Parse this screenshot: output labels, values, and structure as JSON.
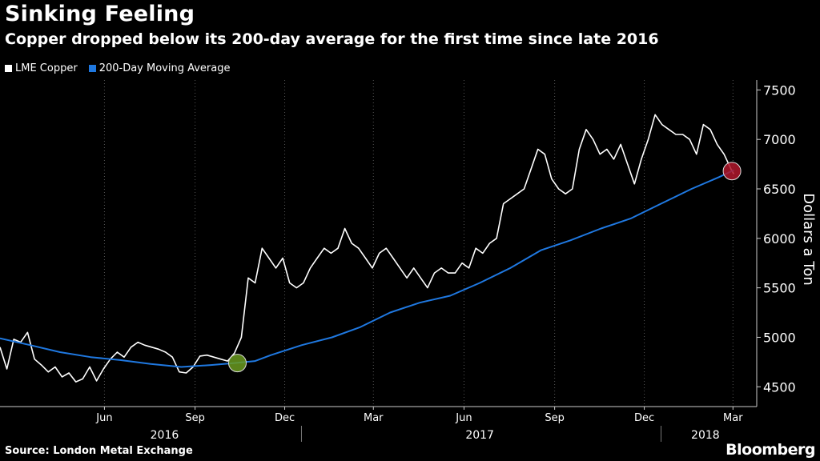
{
  "title": "Sinking Feeling",
  "subtitle": "Copper dropped below its 200-day average for the first time since late 2016",
  "source": "Source: London Metal Exchange",
  "brand": "Bloomberg",
  "colors": {
    "background": "#000000",
    "copper": "#ffffff",
    "ma": "#1f78e0",
    "marker_cross_up": "#6a9a1f",
    "marker_cross_down": "#b0182c"
  },
  "chart_data": {
    "type": "line",
    "title": "Sinking Feeling",
    "subtitle": "Copper dropped below its 200-day average for the first time since late 2016",
    "ylabel": "Dollars a Ton",
    "ylim": [
      4300,
      7600
    ],
    "yticks": [
      4500,
      5000,
      5500,
      6000,
      6500,
      7000,
      7500
    ],
    "x_month_labels": [
      "Jun",
      "Sep",
      "Dec",
      "Mar",
      "Jun",
      "Sep",
      "Dec",
      "Mar"
    ],
    "x_year_labels": [
      "2016",
      "2017",
      "2018"
    ],
    "legend": "top-left",
    "grid": "vertical dotted",
    "series": [
      {
        "name": "LME Copper",
        "color": "#ffffff",
        "points": [
          [
            "2016-03-01",
            4900
          ],
          [
            "2016-03-08",
            4680
          ],
          [
            "2016-03-15",
            4980
          ],
          [
            "2016-03-22",
            4950
          ],
          [
            "2016-03-29",
            5050
          ],
          [
            "2016-04-05",
            4780
          ],
          [
            "2016-04-12",
            4720
          ],
          [
            "2016-04-19",
            4650
          ],
          [
            "2016-04-26",
            4700
          ],
          [
            "2016-05-03",
            4600
          ],
          [
            "2016-05-10",
            4640
          ],
          [
            "2016-05-17",
            4550
          ],
          [
            "2016-05-24",
            4580
          ],
          [
            "2016-05-31",
            4700
          ],
          [
            "2016-06-07",
            4560
          ],
          [
            "2016-06-14",
            4680
          ],
          [
            "2016-06-21",
            4780
          ],
          [
            "2016-06-28",
            4850
          ],
          [
            "2016-07-05",
            4800
          ],
          [
            "2016-07-12",
            4900
          ],
          [
            "2016-07-19",
            4950
          ],
          [
            "2016-07-26",
            4920
          ],
          [
            "2016-08-02",
            4900
          ],
          [
            "2016-08-09",
            4880
          ],
          [
            "2016-08-16",
            4850
          ],
          [
            "2016-08-23",
            4800
          ],
          [
            "2016-08-30",
            4650
          ],
          [
            "2016-09-06",
            4640
          ],
          [
            "2016-09-13",
            4700
          ],
          [
            "2016-09-20",
            4810
          ],
          [
            "2016-09-27",
            4820
          ],
          [
            "2016-10-04",
            4800
          ],
          [
            "2016-10-11",
            4780
          ],
          [
            "2016-10-18",
            4760
          ],
          [
            "2016-10-25",
            4840
          ],
          [
            "2016-11-01",
            5000
          ],
          [
            "2016-11-08",
            5600
          ],
          [
            "2016-11-15",
            5550
          ],
          [
            "2016-11-22",
            5900
          ],
          [
            "2016-11-29",
            5800
          ],
          [
            "2016-12-06",
            5700
          ],
          [
            "2016-12-13",
            5800
          ],
          [
            "2016-12-20",
            5550
          ],
          [
            "2016-12-27",
            5500
          ],
          [
            "2017-01-03",
            5550
          ],
          [
            "2017-01-10",
            5700
          ],
          [
            "2017-01-17",
            5800
          ],
          [
            "2017-01-24",
            5900
          ],
          [
            "2017-01-31",
            5850
          ],
          [
            "2017-02-07",
            5900
          ],
          [
            "2017-02-14",
            6100
          ],
          [
            "2017-02-21",
            5950
          ],
          [
            "2017-02-28",
            5900
          ],
          [
            "2017-03-07",
            5800
          ],
          [
            "2017-03-14",
            5700
          ],
          [
            "2017-03-21",
            5850
          ],
          [
            "2017-03-28",
            5900
          ],
          [
            "2017-04-04",
            5800
          ],
          [
            "2017-04-11",
            5700
          ],
          [
            "2017-04-18",
            5600
          ],
          [
            "2017-04-25",
            5700
          ],
          [
            "2017-05-02",
            5600
          ],
          [
            "2017-05-09",
            5500
          ],
          [
            "2017-05-16",
            5650
          ],
          [
            "2017-05-23",
            5700
          ],
          [
            "2017-05-30",
            5650
          ],
          [
            "2017-06-06",
            5650
          ],
          [
            "2017-06-13",
            5750
          ],
          [
            "2017-06-20",
            5700
          ],
          [
            "2017-06-27",
            5900
          ],
          [
            "2017-07-04",
            5850
          ],
          [
            "2017-07-11",
            5950
          ],
          [
            "2017-07-18",
            6000
          ],
          [
            "2017-07-25",
            6350
          ],
          [
            "2017-08-01",
            6400
          ],
          [
            "2017-08-08",
            6450
          ],
          [
            "2017-08-15",
            6500
          ],
          [
            "2017-08-22",
            6700
          ],
          [
            "2017-08-29",
            6900
          ],
          [
            "2017-09-05",
            6850
          ],
          [
            "2017-09-12",
            6600
          ],
          [
            "2017-09-19",
            6500
          ],
          [
            "2017-09-26",
            6450
          ],
          [
            "2017-10-03",
            6500
          ],
          [
            "2017-10-10",
            6900
          ],
          [
            "2017-10-17",
            7100
          ],
          [
            "2017-10-24",
            7000
          ],
          [
            "2017-10-31",
            6850
          ],
          [
            "2017-11-07",
            6900
          ],
          [
            "2017-11-14",
            6800
          ],
          [
            "2017-11-21",
            6950
          ],
          [
            "2017-11-28",
            6750
          ],
          [
            "2017-12-05",
            6550
          ],
          [
            "2017-12-12",
            6800
          ],
          [
            "2017-12-19",
            7000
          ],
          [
            "2017-12-26",
            7250
          ],
          [
            "2018-01-02",
            7150
          ],
          [
            "2018-01-09",
            7100
          ],
          [
            "2018-01-16",
            7050
          ],
          [
            "2018-01-23",
            7050
          ],
          [
            "2018-01-30",
            7000
          ],
          [
            "2018-02-06",
            6850
          ],
          [
            "2018-02-13",
            7150
          ],
          [
            "2018-02-20",
            7100
          ],
          [
            "2018-02-27",
            6950
          ],
          [
            "2018-03-06",
            6850
          ],
          [
            "2018-03-13",
            6700
          ],
          [
            "2018-03-16",
            6650
          ]
        ]
      },
      {
        "name": "200-Day Moving Average",
        "color": "#1f78e0",
        "points": [
          [
            "2016-03-01",
            4990
          ],
          [
            "2016-04-01",
            4920
          ],
          [
            "2016-05-01",
            4850
          ],
          [
            "2016-06-01",
            4800
          ],
          [
            "2016-07-01",
            4770
          ],
          [
            "2016-08-01",
            4730
          ],
          [
            "2016-09-01",
            4700
          ],
          [
            "2016-10-01",
            4720
          ],
          [
            "2016-10-25",
            4740
          ],
          [
            "2016-11-15",
            4760
          ],
          [
            "2016-12-01",
            4820
          ],
          [
            "2017-01-01",
            4920
          ],
          [
            "2017-02-01",
            5000
          ],
          [
            "2017-03-01",
            5100
          ],
          [
            "2017-04-01",
            5250
          ],
          [
            "2017-05-01",
            5350
          ],
          [
            "2017-06-01",
            5420
          ],
          [
            "2017-07-01",
            5550
          ],
          [
            "2017-08-01",
            5700
          ],
          [
            "2017-09-01",
            5880
          ],
          [
            "2017-10-01",
            5980
          ],
          [
            "2017-11-01",
            6100
          ],
          [
            "2017-12-01",
            6200
          ],
          [
            "2018-01-01",
            6350
          ],
          [
            "2018-02-01",
            6500
          ],
          [
            "2018-03-01",
            6620
          ],
          [
            "2018-03-16",
            6690
          ]
        ]
      }
    ],
    "markers": [
      {
        "date": "2016-10-28",
        "value": 4740,
        "color": "#6a9a1f"
      },
      {
        "date": "2018-03-14",
        "value": 6680,
        "color": "#b0182c"
      }
    ]
  }
}
